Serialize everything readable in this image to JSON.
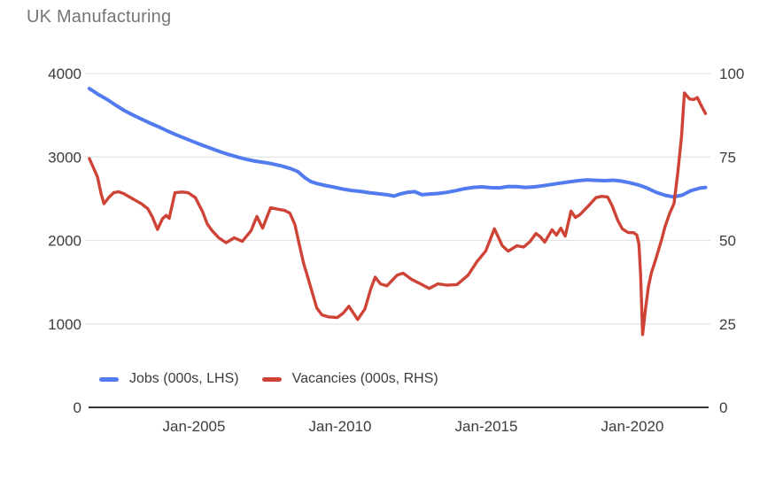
{
  "title": "UK Manufacturing",
  "colors": {
    "jobs": "#517bee",
    "vacancies": "#cf4337",
    "grid": "#e2e2e2",
    "axis_line": "#333333",
    "title_text": "#757575",
    "tick_text": "#3c3c3c"
  },
  "legend": {
    "items": [
      {
        "label": "Jobs (000s, LHS)",
        "color_key": "jobs"
      },
      {
        "label": "Vacancies (000s, RHS)",
        "color_key": "vacancies"
      }
    ]
  },
  "chart_data": {
    "type": "line",
    "title": "UK Manufacturing",
    "x_axis": {
      "tick_labels": [
        "Jan-2005",
        "Jan-2010",
        "Jan-2015",
        "Jan-2020"
      ],
      "tick_values": [
        2005,
        2010,
        2015,
        2020
      ],
      "range": [
        2001.4,
        2022.55
      ],
      "grid": false
    },
    "y_axis_left": {
      "ticks": [
        0,
        1000,
        2000,
        3000,
        4000
      ],
      "range": [
        0,
        4000
      ],
      "grid": true
    },
    "y_axis_right": {
      "ticks": [
        0,
        25,
        50,
        75,
        100
      ],
      "range": [
        0,
        100
      ]
    },
    "legend_position": "bottom-left-inside",
    "series": [
      {
        "name": "Jobs (000s, LHS)",
        "axis": "left",
        "color_key": "jobs",
        "points": [
          [
            2001.42,
            3820
          ],
          [
            2001.7,
            3755
          ],
          [
            2002.0,
            3695
          ],
          [
            2002.3,
            3625
          ],
          [
            2002.6,
            3560
          ],
          [
            2002.9,
            3505
          ],
          [
            2003.2,
            3455
          ],
          [
            2003.5,
            3405
          ],
          [
            2003.8,
            3360
          ],
          [
            2004.1,
            3310
          ],
          [
            2004.4,
            3265
          ],
          [
            2004.7,
            3222
          ],
          [
            2005.0,
            3180
          ],
          [
            2005.3,
            3140
          ],
          [
            2005.6,
            3100
          ],
          [
            2005.9,
            3062
          ],
          [
            2006.2,
            3028
          ],
          [
            2006.5,
            2998
          ],
          [
            2006.8,
            2972
          ],
          [
            2007.1,
            2950
          ],
          [
            2007.4,
            2935
          ],
          [
            2007.7,
            2916
          ],
          [
            2008.0,
            2892
          ],
          [
            2008.3,
            2862
          ],
          [
            2008.55,
            2825
          ],
          [
            2008.8,
            2750
          ],
          [
            2009.0,
            2705
          ],
          [
            2009.2,
            2682
          ],
          [
            2009.5,
            2658
          ],
          [
            2009.8,
            2638
          ],
          [
            2010.1,
            2615
          ],
          [
            2010.4,
            2598
          ],
          [
            2010.7,
            2588
          ],
          [
            2011.0,
            2572
          ],
          [
            2011.3,
            2560
          ],
          [
            2011.6,
            2548
          ],
          [
            2011.85,
            2532
          ],
          [
            2012.05,
            2556
          ],
          [
            2012.3,
            2576
          ],
          [
            2012.55,
            2585
          ],
          [
            2012.8,
            2548
          ],
          [
            2013.05,
            2556
          ],
          [
            2013.35,
            2562
          ],
          [
            2013.65,
            2576
          ],
          [
            2013.95,
            2596
          ],
          [
            2014.25,
            2620
          ],
          [
            2014.55,
            2636
          ],
          [
            2014.85,
            2642
          ],
          [
            2015.15,
            2632
          ],
          [
            2015.45,
            2630
          ],
          [
            2015.75,
            2646
          ],
          [
            2016.05,
            2645
          ],
          [
            2016.35,
            2636
          ],
          [
            2016.65,
            2642
          ],
          [
            2016.95,
            2656
          ],
          [
            2017.25,
            2672
          ],
          [
            2017.55,
            2688
          ],
          [
            2017.85,
            2702
          ],
          [
            2018.15,
            2716
          ],
          [
            2018.45,
            2726
          ],
          [
            2018.75,
            2720
          ],
          [
            2019.05,
            2716
          ],
          [
            2019.35,
            2722
          ],
          [
            2019.6,
            2712
          ],
          [
            2019.9,
            2692
          ],
          [
            2020.2,
            2665
          ],
          [
            2020.5,
            2628
          ],
          [
            2020.8,
            2578
          ],
          [
            2021.1,
            2542
          ],
          [
            2021.4,
            2522
          ],
          [
            2021.7,
            2542
          ],
          [
            2022.0,
            2596
          ],
          [
            2022.3,
            2626
          ],
          [
            2022.5,
            2636
          ]
        ]
      },
      {
        "name": "Vacancies (000s, RHS)",
        "axis": "right",
        "color_key": "vacancies",
        "points": [
          [
            2001.42,
            74.5
          ],
          [
            2001.55,
            72
          ],
          [
            2001.7,
            69
          ],
          [
            2001.82,
            64
          ],
          [
            2001.92,
            61
          ],
          [
            2002.1,
            63
          ],
          [
            2002.25,
            64.3
          ],
          [
            2002.42,
            64.6
          ],
          [
            2002.6,
            64
          ],
          [
            2002.8,
            63
          ],
          [
            2003.0,
            62
          ],
          [
            2003.2,
            61
          ],
          [
            2003.42,
            59.5
          ],
          [
            2003.58,
            57
          ],
          [
            2003.75,
            53.3
          ],
          [
            2003.92,
            56.5
          ],
          [
            2004.05,
            57.5
          ],
          [
            2004.15,
            56.6
          ],
          [
            2004.35,
            64.3
          ],
          [
            2004.6,
            64.5
          ],
          [
            2004.8,
            64.3
          ],
          [
            2005.05,
            62.8
          ],
          [
            2005.3,
            58.5
          ],
          [
            2005.45,
            55
          ],
          [
            2005.62,
            52.9
          ],
          [
            2005.85,
            50.8
          ],
          [
            2006.1,
            49.3
          ],
          [
            2006.38,
            50.8
          ],
          [
            2006.65,
            49.7
          ],
          [
            2006.95,
            52.9
          ],
          [
            2007.15,
            57.2
          ],
          [
            2007.35,
            53.7
          ],
          [
            2007.62,
            59.8
          ],
          [
            2007.9,
            59.3
          ],
          [
            2008.1,
            59
          ],
          [
            2008.28,
            58.2
          ],
          [
            2008.45,
            54.8
          ],
          [
            2008.6,
            48.9
          ],
          [
            2008.75,
            43.1
          ],
          [
            2008.9,
            38.8
          ],
          [
            2009.05,
            34.3
          ],
          [
            2009.2,
            29.8
          ],
          [
            2009.38,
            27.7
          ],
          [
            2009.6,
            27.1
          ],
          [
            2009.9,
            26.9
          ],
          [
            2010.1,
            28.2
          ],
          [
            2010.3,
            30.3
          ],
          [
            2010.6,
            26.3
          ],
          [
            2010.85,
            29.5
          ],
          [
            2011.05,
            35.5
          ],
          [
            2011.2,
            39
          ],
          [
            2011.38,
            37
          ],
          [
            2011.6,
            36.4
          ],
          [
            2011.95,
            39.6
          ],
          [
            2012.15,
            40.2
          ],
          [
            2012.45,
            38.3
          ],
          [
            2012.75,
            37
          ],
          [
            2013.05,
            35.6
          ],
          [
            2013.35,
            37
          ],
          [
            2013.65,
            36.6
          ],
          [
            2014.0,
            36.8
          ],
          [
            2014.38,
            39.6
          ],
          [
            2014.68,
            43.6
          ],
          [
            2014.98,
            46.8
          ],
          [
            2015.28,
            53.5
          ],
          [
            2015.55,
            48.4
          ],
          [
            2015.75,
            46.8
          ],
          [
            2016.05,
            48.4
          ],
          [
            2016.28,
            48
          ],
          [
            2016.5,
            49.7
          ],
          [
            2016.7,
            52.1
          ],
          [
            2016.85,
            51.1
          ],
          [
            2017.0,
            49.5
          ],
          [
            2017.25,
            53.2
          ],
          [
            2017.4,
            51.6
          ],
          [
            2017.55,
            53.7
          ],
          [
            2017.7,
            51.3
          ],
          [
            2017.9,
            58.8
          ],
          [
            2018.05,
            56.9
          ],
          [
            2018.2,
            57.7
          ],
          [
            2018.5,
            60.4
          ],
          [
            2018.75,
            62.8
          ],
          [
            2018.95,
            63.2
          ],
          [
            2019.15,
            63
          ],
          [
            2019.3,
            60.5
          ],
          [
            2019.5,
            56
          ],
          [
            2019.65,
            53.5
          ],
          [
            2019.85,
            52.4
          ],
          [
            2020.05,
            52.3
          ],
          [
            2020.15,
            51.6
          ],
          [
            2020.22,
            49
          ],
          [
            2020.28,
            40
          ],
          [
            2020.35,
            21.8
          ],
          [
            2020.45,
            29.8
          ],
          [
            2020.55,
            36.2
          ],
          [
            2020.65,
            40.4
          ],
          [
            2020.8,
            44.4
          ],
          [
            2021.0,
            50.3
          ],
          [
            2021.12,
            54.3
          ],
          [
            2021.28,
            58.2
          ],
          [
            2021.42,
            61
          ],
          [
            2021.55,
            70
          ],
          [
            2021.68,
            81
          ],
          [
            2021.78,
            94.2
          ],
          [
            2021.95,
            92.4
          ],
          [
            2022.1,
            92.2
          ],
          [
            2022.22,
            92.8
          ],
          [
            2022.35,
            90.5
          ],
          [
            2022.5,
            88
          ]
        ]
      }
    ]
  }
}
